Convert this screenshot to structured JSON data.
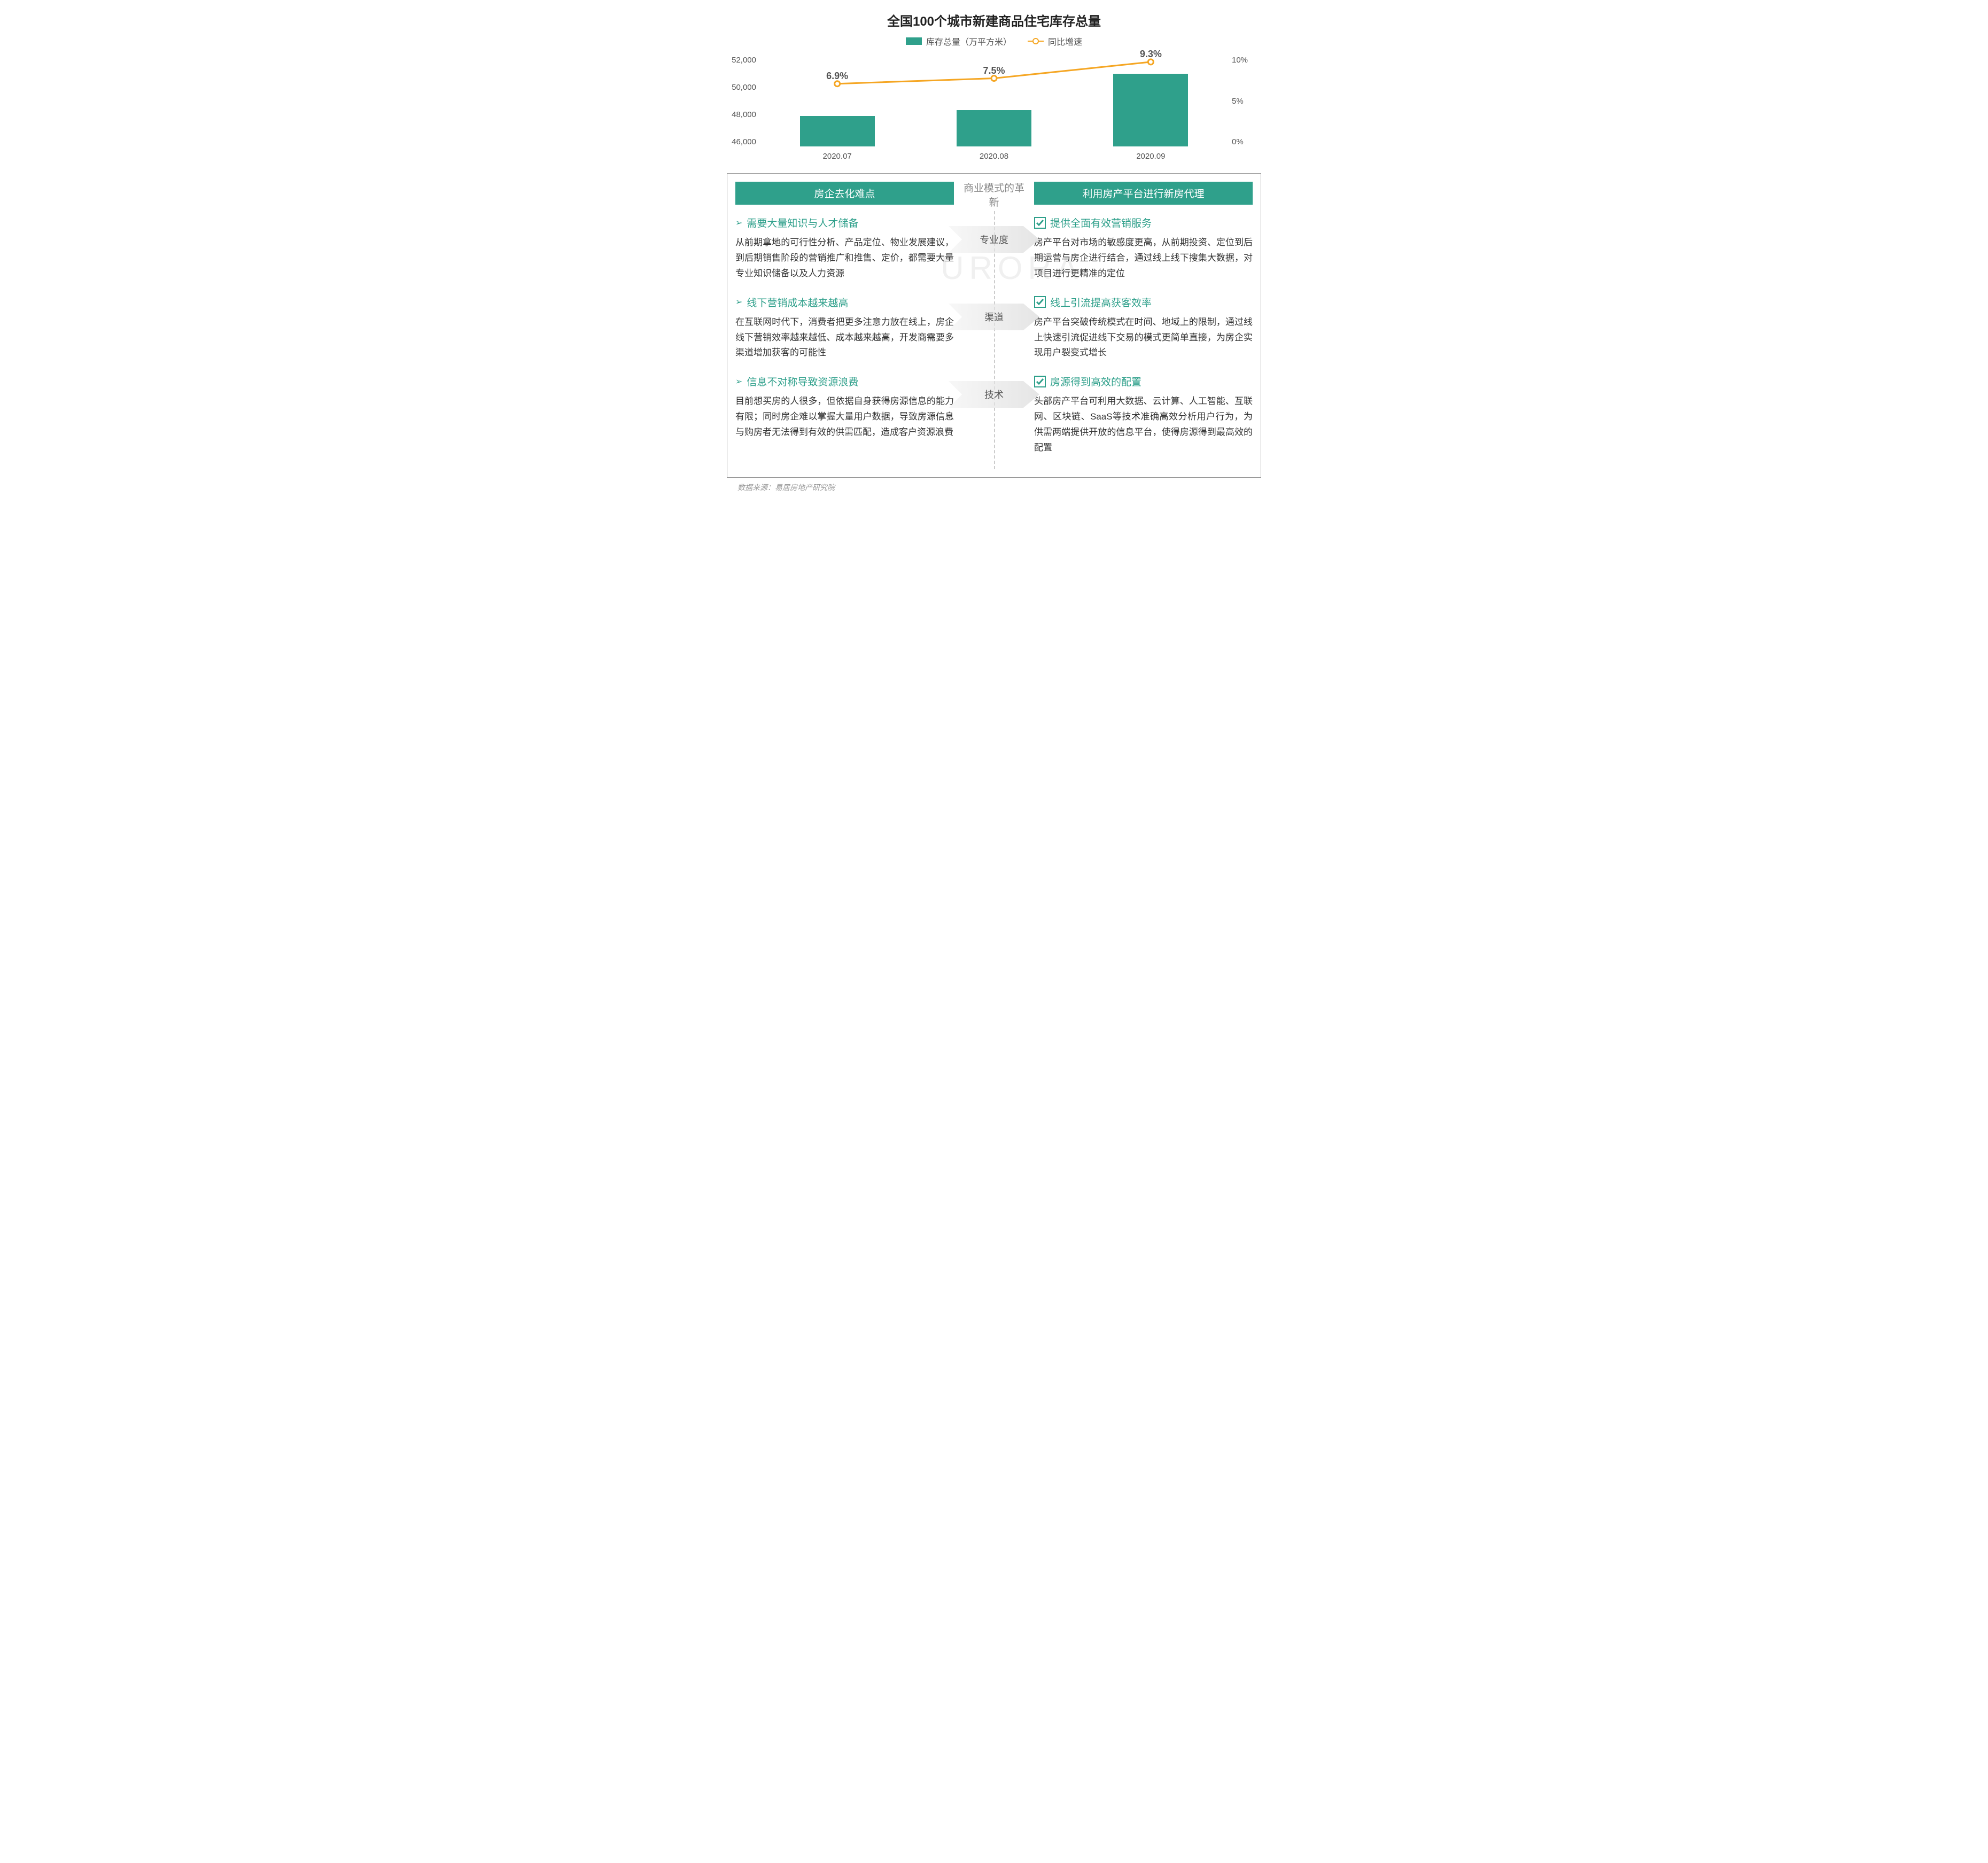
{
  "chart": {
    "title": "全国100个城市新建商品住宅库存总量",
    "title_fontsize": 24,
    "title_color": "#222222",
    "legend": {
      "bar_label": "库存总量（万平方米）",
      "line_label": "同比增速",
      "fontsize": 16,
      "text_color": "#555555"
    },
    "type": "bar+line",
    "categories": [
      "2020.07",
      "2020.08",
      "2020.09"
    ],
    "bar_values": [
      48000,
      48400,
      50800
    ],
    "bar_color": "#2fa08b",
    "line_values": [
      6.9,
      7.5,
      9.3
    ],
    "line_labels": [
      "6.9%",
      "7.5%",
      "9.3%"
    ],
    "line_color": "#f5a623",
    "line_marker": "circle",
    "line_width": 3,
    "y_left": {
      "min": 46000,
      "max": 52000,
      "ticks": [
        "52,000",
        "50,000",
        "48,000",
        "46,000"
      ]
    },
    "y_right": {
      "min": 0,
      "max": 10,
      "ticks": [
        "10%",
        "5%",
        "0%"
      ]
    },
    "axis_fontsize": 15,
    "axis_color": "#555555",
    "label_fontsize": 18,
    "label_color": "#555555",
    "background_color": "#ffffff"
  },
  "section": {
    "left_header": "房企去化难点",
    "right_header": "利用房产平台进行新房代理",
    "header_bg": "#2fa08b",
    "mid_title": "商业模式的革新",
    "bullet_color": "#2fa08b",
    "title_color": "#2fa08b",
    "check_color": "#2fa08b",
    "arrow_fill": "#e5e5e5",
    "left_items": [
      {
        "title": "需要大量知识与人才储备",
        "body": "从前期拿地的可行性分析、产品定位、物业发展建议，到后期销售阶段的营销推广和推售、定价，都需要大量专业知识储备以及人力资源"
      },
      {
        "title": "线下营销成本越来越高",
        "body": "在互联网时代下，消费者把更多注意力放在线上，房企线下营销效率越来越低、成本越来越高，开发商需要多渠道增加获客的可能性"
      },
      {
        "title": "信息不对称导致资源浪费",
        "body": "目前想买房的人很多，但依据自身获得房源信息的能力有限；同时房企难以掌握大量用户数据，导致房源信息与购房者无法得到有效的供需匹配，造成客户资源浪费"
      }
    ],
    "mid_labels": [
      "专业度",
      "渠道",
      "技术"
    ],
    "right_items": [
      {
        "title": "提供全面有效营销服务",
        "body": "房产平台对市场的敏感度更高，从前期投资、定位到后期运营与房企进行结合，通过线上线下搜集大数据，对项目进行更精准的定位"
      },
      {
        "title": "线上引流提高获客效率",
        "body": "房产平台突破传统模式在时间、地域上的限制，通过线上快速引流促进线下交易的模式更简单直接，为房企实现用户裂变式增长"
      },
      {
        "title": "房源得到高效的配置",
        "body": "头部房产平台可利用大数据、云计算、人工智能、互联网、区块链、SaaS等技术准确高效分析用户行为，为供需两端提供开放的信息平台，使得房源得到最高效的配置"
      }
    ]
  },
  "source": "数据来源：易居房地产研究院",
  "watermark": "URORA"
}
